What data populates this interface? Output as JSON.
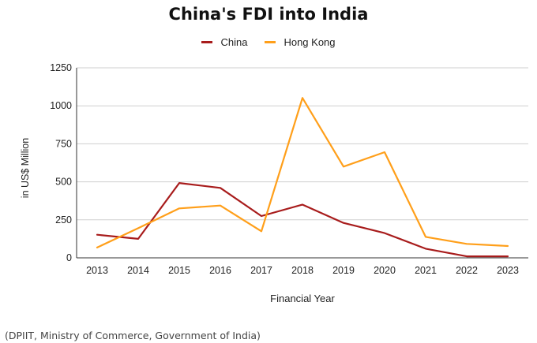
{
  "chart_data": {
    "type": "line",
    "title": "China's FDI into India",
    "xlabel": "Financial Year",
    "ylabel": "in US$ Million",
    "ylim": [
      0,
      1250
    ],
    "yticks": [
      0,
      250,
      500,
      750,
      1000,
      1250
    ],
    "categories": [
      "2013",
      "2014",
      "2015",
      "2016",
      "2017",
      "2018",
      "2019",
      "2020",
      "2021",
      "2022",
      "2023"
    ],
    "legend_position": "top",
    "grid": "horizontal",
    "series": [
      {
        "name": "China",
        "color": "#a81c1c",
        "values": [
          152,
          125,
          492,
          460,
          275,
          350,
          230,
          163,
          60,
          10,
          10
        ]
      },
      {
        "name": "Hong Kong",
        "color": "#ff9f1a",
        "values": [
          68,
          195,
          325,
          344,
          175,
          1052,
          600,
          695,
          138,
          92,
          78
        ]
      }
    ]
  },
  "source_note": "(DPIIT, Ministry of Commerce, Government of India)"
}
